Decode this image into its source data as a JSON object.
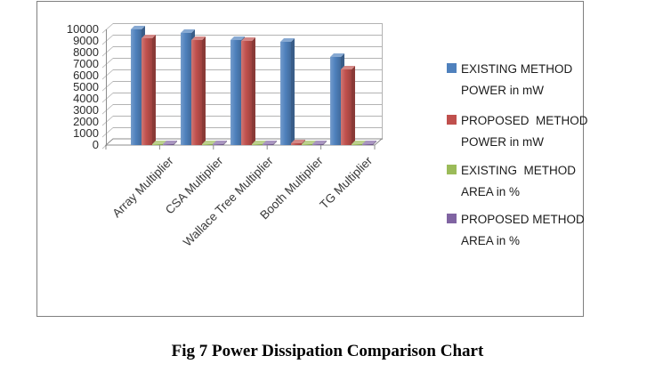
{
  "figure_caption": "Fig 7 Power Dissipation Comparison Chart",
  "chart_data": {
    "type": "bar",
    "projection": "3d",
    "title": "",
    "xlabel": "",
    "ylabel": "",
    "categories": [
      "Array Multiplier",
      "CSA Multiplier",
      "Wallace Tree Multiplier",
      "Booth Multiplier",
      "TG Multiplier"
    ],
    "series": [
      {
        "name": "EXISTING METHOD\nPOWER in mW",
        "color": "#4F81BD",
        "values": [
          10000,
          9700,
          9050,
          8900,
          7600
        ]
      },
      {
        "name": "PROPOSED  METHOD\nPOWER in mW",
        "color": "#C0504D",
        "values": [
          9200,
          9100,
          9000,
          150,
          6500
        ]
      },
      {
        "name": "EXISTING  METHOD\nAREA in %",
        "color": "#9BBB59",
        "values": [
          100,
          100,
          100,
          100,
          100
        ]
      },
      {
        "name": "PROPOSED METHOD\nAREA in %",
        "color": "#8064A2",
        "values": [
          80,
          80,
          80,
          80,
          80
        ]
      }
    ],
    "ylim": [
      0,
      10000
    ],
    "ytick_step": 1000,
    "grid": true,
    "legend_position": "right",
    "colors": {
      "gridline": "#b3b3b3",
      "axis": "#8c8c8c",
      "text": "#2b2b2b"
    }
  }
}
